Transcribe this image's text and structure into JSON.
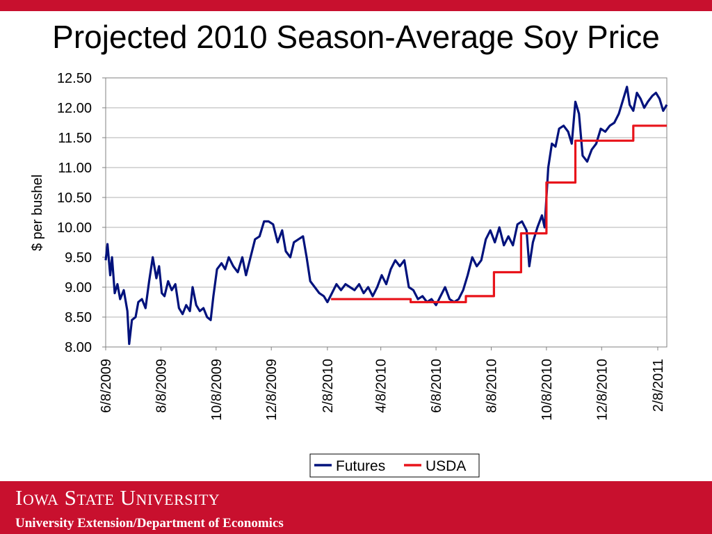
{
  "slide": {
    "title": "Projected 2010 Season-Average Soy Price",
    "footer_university": "Iowa State University",
    "footer_sub": "University Extension/Department of Economics"
  },
  "colors": {
    "brand_red": "#c8102e",
    "futures": "#00127c",
    "usda": "#e8141b"
  },
  "chart_data": {
    "type": "line",
    "title": "",
    "xlabel": "",
    "ylabel": "$ per bushel",
    "ylim": [
      8.0,
      12.5
    ],
    "y_ticks": [
      "8.00",
      "8.50",
      "9.00",
      "9.50",
      "10.00",
      "10.50",
      "11.00",
      "11.50",
      "12.00",
      "12.50"
    ],
    "x_range": [
      "2009-06-08",
      "2011-02-18"
    ],
    "x_ticks": [
      "6/8/2009",
      "8/8/2009",
      "10/8/2009",
      "12/8/2009",
      "2/8/2010",
      "4/8/2010",
      "6/8/2010",
      "8/8/2010",
      "10/8/2010",
      "12/8/2010",
      "2/8/2011"
    ],
    "grid": true,
    "legend_position": "bottom",
    "series": [
      {
        "name": "Futures",
        "color": "#00127c",
        "points": [
          [
            "2009-06-08",
            9.45
          ],
          [
            "2009-06-10",
            9.72
          ],
          [
            "2009-06-13",
            9.2
          ],
          [
            "2009-06-15",
            9.5
          ],
          [
            "2009-06-18",
            8.9
          ],
          [
            "2009-06-21",
            9.05
          ],
          [
            "2009-06-24",
            8.8
          ],
          [
            "2009-06-28",
            8.95
          ],
          [
            "2009-07-02",
            8.6
          ],
          [
            "2009-07-04",
            8.05
          ],
          [
            "2009-07-07",
            8.45
          ],
          [
            "2009-07-11",
            8.5
          ],
          [
            "2009-07-14",
            8.75
          ],
          [
            "2009-07-18",
            8.8
          ],
          [
            "2009-07-22",
            8.65
          ],
          [
            "2009-07-26",
            9.1
          ],
          [
            "2009-07-30",
            9.5
          ],
          [
            "2009-08-03",
            9.15
          ],
          [
            "2009-08-06",
            9.35
          ],
          [
            "2009-08-09",
            8.9
          ],
          [
            "2009-08-12",
            8.85
          ],
          [
            "2009-08-16",
            9.1
          ],
          [
            "2009-08-20",
            8.95
          ],
          [
            "2009-08-24",
            9.05
          ],
          [
            "2009-08-28",
            8.65
          ],
          [
            "2009-09-01",
            8.55
          ],
          [
            "2009-09-05",
            8.7
          ],
          [
            "2009-09-09",
            8.6
          ],
          [
            "2009-09-12",
            9.0
          ],
          [
            "2009-09-16",
            8.7
          ],
          [
            "2009-09-20",
            8.6
          ],
          [
            "2009-09-24",
            8.65
          ],
          [
            "2009-09-28",
            8.5
          ],
          [
            "2009-10-02",
            8.45
          ],
          [
            "2009-10-05",
            8.85
          ],
          [
            "2009-10-09",
            9.3
          ],
          [
            "2009-10-14",
            9.4
          ],
          [
            "2009-10-18",
            9.3
          ],
          [
            "2009-10-22",
            9.5
          ],
          [
            "2009-10-27",
            9.35
          ],
          [
            "2009-11-01",
            9.25
          ],
          [
            "2009-11-06",
            9.5
          ],
          [
            "2009-11-10",
            9.2
          ],
          [
            "2009-11-15",
            9.5
          ],
          [
            "2009-11-20",
            9.8
          ],
          [
            "2009-11-25",
            9.85
          ],
          [
            "2009-11-30",
            10.1
          ],
          [
            "2009-12-05",
            10.1
          ],
          [
            "2009-12-10",
            10.05
          ],
          [
            "2009-12-15",
            9.75
          ],
          [
            "2009-12-20",
            9.95
          ],
          [
            "2009-12-24",
            9.6
          ],
          [
            "2009-12-29",
            9.5
          ],
          [
            "2010-01-02",
            9.75
          ],
          [
            "2010-01-07",
            9.8
          ],
          [
            "2010-01-12",
            9.85
          ],
          [
            "2010-01-16",
            9.5
          ],
          [
            "2010-01-20",
            9.1
          ],
          [
            "2010-01-25",
            9.0
          ],
          [
            "2010-01-30",
            8.9
          ],
          [
            "2010-02-04",
            8.85
          ],
          [
            "2010-02-08",
            8.75
          ],
          [
            "2010-02-13",
            8.9
          ],
          [
            "2010-02-18",
            9.05
          ],
          [
            "2010-02-23",
            8.95
          ],
          [
            "2010-02-28",
            9.05
          ],
          [
            "2010-03-05",
            9.0
          ],
          [
            "2010-03-10",
            8.95
          ],
          [
            "2010-03-15",
            9.05
          ],
          [
            "2010-03-20",
            8.9
          ],
          [
            "2010-03-25",
            9.0
          ],
          [
            "2010-03-30",
            8.85
          ],
          [
            "2010-04-04",
            9.0
          ],
          [
            "2010-04-09",
            9.2
          ],
          [
            "2010-04-14",
            9.05
          ],
          [
            "2010-04-19",
            9.3
          ],
          [
            "2010-04-24",
            9.45
          ],
          [
            "2010-04-29",
            9.35
          ],
          [
            "2010-05-04",
            9.45
          ],
          [
            "2010-05-09",
            9.0
          ],
          [
            "2010-05-14",
            8.95
          ],
          [
            "2010-05-19",
            8.8
          ],
          [
            "2010-05-24",
            8.85
          ],
          [
            "2010-05-29",
            8.75
          ],
          [
            "2010-06-03",
            8.8
          ],
          [
            "2010-06-08",
            8.7
          ],
          [
            "2010-06-13",
            8.85
          ],
          [
            "2010-06-18",
            9.0
          ],
          [
            "2010-06-23",
            8.8
          ],
          [
            "2010-06-28",
            8.75
          ],
          [
            "2010-07-03",
            8.8
          ],
          [
            "2010-07-08",
            8.95
          ],
          [
            "2010-07-13",
            9.2
          ],
          [
            "2010-07-18",
            9.5
          ],
          [
            "2010-07-23",
            9.35
          ],
          [
            "2010-07-28",
            9.45
          ],
          [
            "2010-08-02",
            9.8
          ],
          [
            "2010-08-07",
            9.95
          ],
          [
            "2010-08-12",
            9.75
          ],
          [
            "2010-08-17",
            10.0
          ],
          [
            "2010-08-22",
            9.7
          ],
          [
            "2010-08-27",
            9.85
          ],
          [
            "2010-09-01",
            9.7
          ],
          [
            "2010-09-06",
            10.05
          ],
          [
            "2010-09-11",
            10.1
          ],
          [
            "2010-09-16",
            9.95
          ],
          [
            "2010-09-19",
            9.35
          ],
          [
            "2010-09-23",
            9.75
          ],
          [
            "2010-09-28",
            10.0
          ],
          [
            "2010-10-03",
            10.2
          ],
          [
            "2010-10-06",
            10.0
          ],
          [
            "2010-10-10",
            11.0
          ],
          [
            "2010-10-14",
            11.4
          ],
          [
            "2010-10-18",
            11.35
          ],
          [
            "2010-10-22",
            11.65
          ],
          [
            "2010-10-27",
            11.7
          ],
          [
            "2010-11-01",
            11.6
          ],
          [
            "2010-11-05",
            11.4
          ],
          [
            "2010-11-09",
            12.1
          ],
          [
            "2010-11-13",
            11.9
          ],
          [
            "2010-11-17",
            11.2
          ],
          [
            "2010-11-22",
            11.1
          ],
          [
            "2010-11-27",
            11.3
          ],
          [
            "2010-12-02",
            11.4
          ],
          [
            "2010-12-07",
            11.65
          ],
          [
            "2010-12-12",
            11.6
          ],
          [
            "2010-12-17",
            11.7
          ],
          [
            "2010-12-22",
            11.75
          ],
          [
            "2010-12-27",
            11.9
          ],
          [
            "2011-01-01",
            12.15
          ],
          [
            "2011-01-05",
            12.35
          ],
          [
            "2011-01-08",
            12.05
          ],
          [
            "2011-01-12",
            11.95
          ],
          [
            "2011-01-16",
            12.25
          ],
          [
            "2011-01-20",
            12.15
          ],
          [
            "2011-01-24",
            12.0
          ],
          [
            "2011-01-28",
            12.1
          ],
          [
            "2011-02-02",
            12.2
          ],
          [
            "2011-02-06",
            12.25
          ],
          [
            "2011-02-10",
            12.15
          ],
          [
            "2011-02-14",
            11.95
          ],
          [
            "2011-02-18",
            12.05
          ]
        ]
      },
      {
        "name": "USDA",
        "color": "#e8141b",
        "step": true,
        "points": [
          [
            "2010-02-12",
            8.8
          ],
          [
            "2010-05-11",
            8.8
          ],
          [
            "2010-05-11",
            8.75
          ],
          [
            "2010-07-11",
            8.75
          ],
          [
            "2010-07-11",
            8.85
          ],
          [
            "2010-08-11",
            8.85
          ],
          [
            "2010-08-11",
            9.25
          ],
          [
            "2010-09-10",
            9.25
          ],
          [
            "2010-09-10",
            9.9
          ],
          [
            "2010-10-08",
            9.9
          ],
          [
            "2010-10-08",
            10.75
          ],
          [
            "2010-11-09",
            10.75
          ],
          [
            "2010-11-09",
            11.45
          ],
          [
            "2011-01-12",
            11.45
          ],
          [
            "2011-01-12",
            11.7
          ],
          [
            "2011-02-18",
            11.7
          ]
        ]
      }
    ]
  }
}
